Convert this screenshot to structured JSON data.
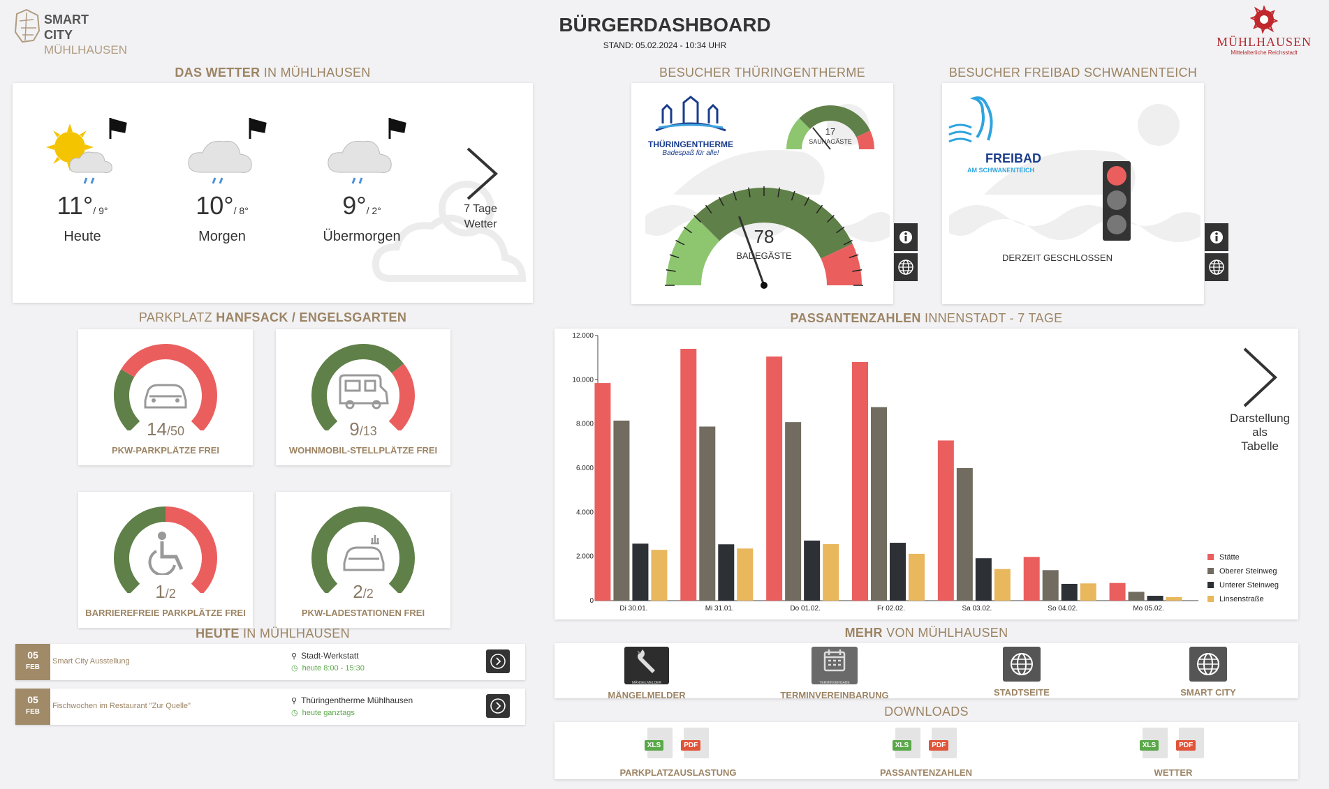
{
  "header": {
    "title": "BÜRGERDASHBOARD",
    "stand": "STAND: 05.02.2024 - 10:34 UHR",
    "logo_left": {
      "line1": "SMART",
      "line2": "CITY",
      "line3": "MÜHLHAUSEN"
    },
    "logo_right": {
      "name": "MÜHLHAUSEN",
      "sub": "Mittelalterliche Reichsstadt"
    }
  },
  "weather": {
    "title_a": "DAS WETTER",
    "title_b": "IN MÜHLHAUSEN",
    "days": [
      {
        "temp": "11°",
        "low": "/ 9°",
        "name": "Heute"
      },
      {
        "temp": "10°",
        "low": "/ 8°",
        "name": "Morgen"
      },
      {
        "temp": "9°",
        "low": "/ 2°",
        "name": "Übermorgen"
      }
    ],
    "more_line1": "7 Tage",
    "more_line2": "Wetter"
  },
  "therme": {
    "title": "BESUCHER THÜRINGENTHERME",
    "logo_name": "THÜRINGENTHERME",
    "logo_slogan": "Badespaß für alle!",
    "bath_count": 78,
    "bath_max": 200,
    "bath_label": "BADEGÄSTE",
    "sauna_count": 17,
    "sauna_max": 60,
    "sauna_label": "SAUNAGÄSTE"
  },
  "freibad": {
    "title": "BESUCHER FREIBAD SCHWANENTEICH",
    "logo_name": "FREIBAD",
    "logo_sub": "AM SCHWANENTEICH",
    "status": "DERZEIT GESCHLOSSEN"
  },
  "parking": {
    "title_a": "PARKPLATZ",
    "title_b": "HANFSACK / ENGELSGARTEN",
    "items": [
      {
        "free": 14,
        "total": 50,
        "total_label": "/50",
        "free_label": "14",
        "label": "PKW-PARKPLÄTZE FREI",
        "icon": "car-icon"
      },
      {
        "free": 9,
        "total": 13,
        "total_label": "/13",
        "free_label": "9",
        "label": "WOHNMOBIL-STELLPLÄTZE FREI",
        "icon": "camper-icon"
      },
      {
        "free": 1,
        "total": 2,
        "total_label": "/2",
        "free_label": "1",
        "label": "BARRIEREFREIE PARKPLÄTZE FREI",
        "icon": "wheelchair-icon"
      },
      {
        "free": 2,
        "total": 2,
        "total_label": "/2",
        "free_label": "2",
        "label": "PKW-LADESTATIONEN FREI",
        "icon": "ev-charging-icon"
      }
    ]
  },
  "passanten": {
    "title_a": "PASSANTENZAHLEN",
    "title_b": "INNENSTADT - 7 TAGE",
    "table_line1": "Darstellung",
    "table_line2": "als",
    "table_line3": "Tabelle"
  },
  "chart_data": {
    "type": "bar",
    "categories": [
      "Di 30.01.",
      "Mi 31.01.",
      "Do 01.02.",
      "Fr 02.02.",
      "Sa 03.02.",
      "So 04.02.",
      "Mo 05.02."
    ],
    "y_ticks": [
      "0",
      "2.000",
      "4.000",
      "6.000",
      "8.000",
      "10.000",
      "12.000"
    ],
    "ylim": [
      0,
      12000
    ],
    "grid": false,
    "legend_position": "bottom-right",
    "series": [
      {
        "name": "Stätte",
        "color": "#ea5f5e",
        "values": [
          9850,
          11400,
          11050,
          10800,
          7250,
          1980,
          800
        ]
      },
      {
        "name": "Oberer Steinweg",
        "color": "#716b60",
        "values": [
          8150,
          7880,
          8080,
          8760,
          6000,
          1380,
          400
        ]
      },
      {
        "name": "Unterer Steinweg",
        "color": "#2d3136",
        "values": [
          2580,
          2550,
          2720,
          2620,
          1920,
          760,
          220
        ]
      },
      {
        "name": "Linsenstraße",
        "color": "#e9b75c",
        "values": [
          2300,
          2360,
          2560,
          2120,
          1430,
          780,
          160
        ]
      }
    ]
  },
  "today": {
    "title_a": "HEUTE",
    "title_b": "IN MÜHLHAUSEN",
    "events": [
      {
        "day": "05",
        "month": "FEB",
        "title": "Smart City Ausstellung",
        "location": "Stadt-Werkstatt",
        "time": "heute 8:00 - 15:30"
      },
      {
        "day": "05",
        "month": "FEB",
        "title": "Fischwochen im Restaurant \"Zur Quelle\"",
        "location": "Thüringentherme Mühlhausen",
        "time": "heute ganztags"
      }
    ]
  },
  "more": {
    "title_a": "MEHR",
    "title_b": "VON MÜHLHAUSEN",
    "items": [
      {
        "label": "MÄNGELMELDER",
        "icon_caption": "MÄNGELMELDER",
        "icon": "wrench-icon"
      },
      {
        "label": "TERMINVEREINBARUNG",
        "icon_caption": "TERMINVERGABE",
        "icon": "calendar-icon"
      },
      {
        "label": "STADTSEITE",
        "icon_caption": "",
        "icon": "globe-icon"
      },
      {
        "label": "SMART CITY",
        "icon_caption": "",
        "icon": "globe-icon"
      }
    ]
  },
  "downloads": {
    "title": "DOWNLOADS",
    "xls": "XLS",
    "pdf": "PDF",
    "items": [
      {
        "label": "PARKPLATZAUSLASTUNG"
      },
      {
        "label": "PASSANTENZAHLEN"
      },
      {
        "label": "WETTER"
      }
    ]
  },
  "colors": {
    "green": "#5f8048",
    "red": "#ea5f5e",
    "light_green": "#8dc66f",
    "gold": "#9c8464"
  }
}
